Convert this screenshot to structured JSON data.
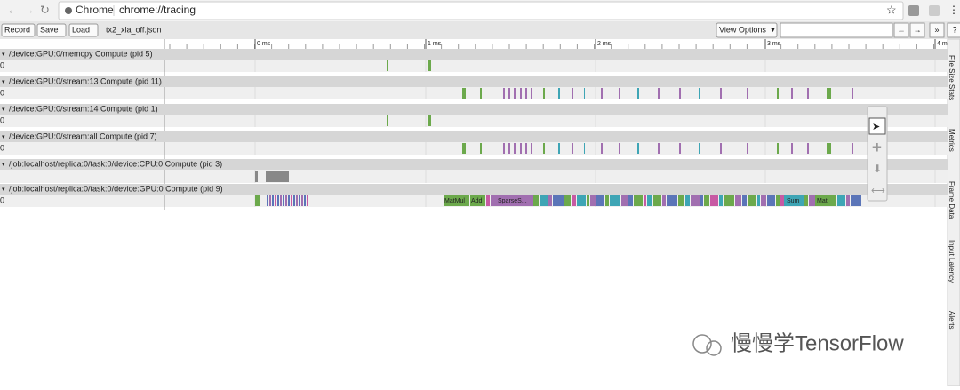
{
  "browser": {
    "tab_label": "Chrome",
    "url": "chrome://tracing"
  },
  "toolbar": {
    "buttons": [
      "Record",
      "Save",
      "Load"
    ],
    "filename": "tx2_xla_off.json",
    "view_options": "View Options",
    "nav": [
      "←",
      "→",
      "»",
      "?"
    ]
  },
  "ruler": {
    "ticks": [
      "0 ms",
      "1 ms",
      "2 ms",
      "3 ms",
      "4 m"
    ]
  },
  "processes": [
    {
      "title": "/device:GPU:0/memcpy Compute (pid 5)",
      "thread": "0"
    },
    {
      "title": "/device:GPU:0/stream:13 Compute (pid 11)",
      "thread": "0"
    },
    {
      "title": "/device:GPU:0/stream:14 Compute (pid 1)",
      "thread": "0"
    },
    {
      "title": "/device:GPU:0/stream:all Compute (pid 7)",
      "thread": "0"
    },
    {
      "title": "/job:localhost/replica:0/task:0/device:CPU:0 Compute (pid 3)",
      "thread": ""
    },
    {
      "title": "/job:localhost/replica:0/task:0/device:GPU:0 Compute (pid 9)",
      "thread": "0"
    }
  ],
  "slice_labels": [
    "MatMul",
    "Add",
    "SparseS...",
    "Sum",
    "Mat"
  ],
  "side_tabs": [
    "File Size Stats",
    "Metrics",
    "Frame Data",
    "Input Latency",
    "Alerts"
  ],
  "watermark": "慢慢学TensorFlow"
}
